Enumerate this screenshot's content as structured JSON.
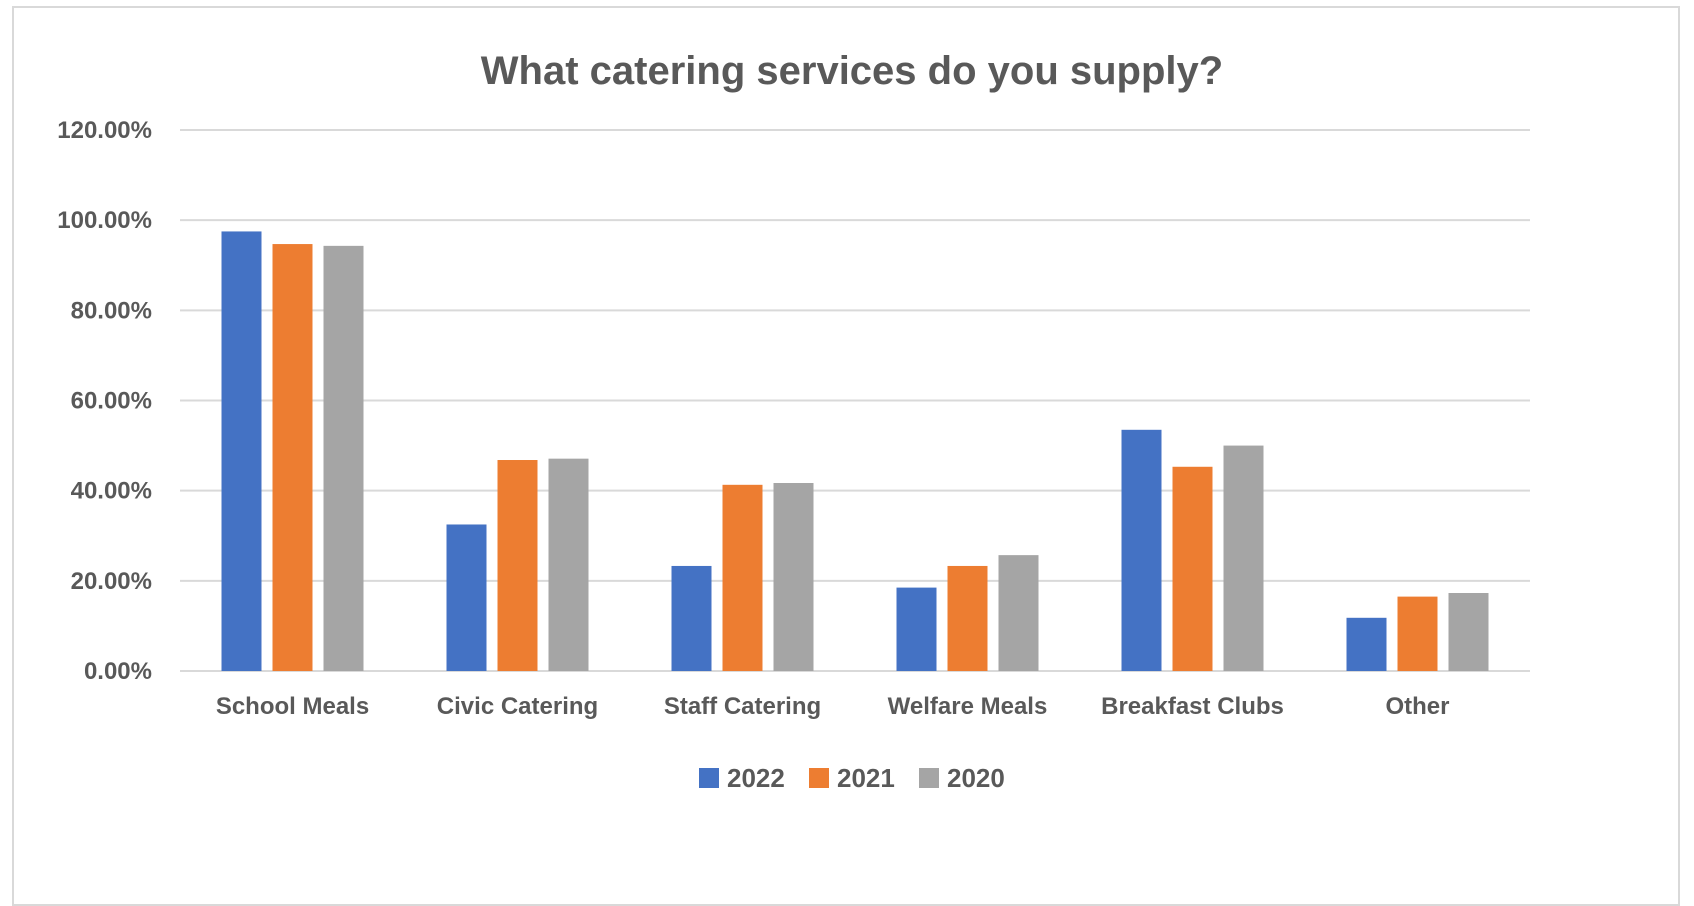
{
  "chart_data": {
    "type": "bar",
    "title": "What catering services do you supply?",
    "xlabel": "",
    "ylabel": "",
    "categories": [
      "School Meals",
      "Civic Catering",
      "Staff Catering",
      "Welfare Meals",
      "Breakfast Clubs",
      "Other"
    ],
    "series": [
      {
        "name": "2022",
        "color": "#4472C4",
        "values": [
          97.5,
          32.5,
          23.3,
          18.5,
          53.5,
          11.8
        ]
      },
      {
        "name": "2021",
        "color": "#ED7D31",
        "values": [
          94.7,
          46.8,
          41.3,
          23.3,
          45.3,
          16.5
        ]
      },
      {
        "name": "2020",
        "color": "#A5A5A5",
        "values": [
          94.3,
          47.1,
          41.7,
          25.7,
          50.0,
          17.3
        ]
      }
    ],
    "ylim": [
      0,
      120
    ],
    "yticks": [
      0,
      20,
      40,
      60,
      80,
      100,
      120
    ],
    "ytick_labels": [
      "0.00%",
      "20.00%",
      "40.00%",
      "60.00%",
      "80.00%",
      "100.00%",
      "120.00%"
    ],
    "grid": true,
    "legend_position": "bottom"
  }
}
